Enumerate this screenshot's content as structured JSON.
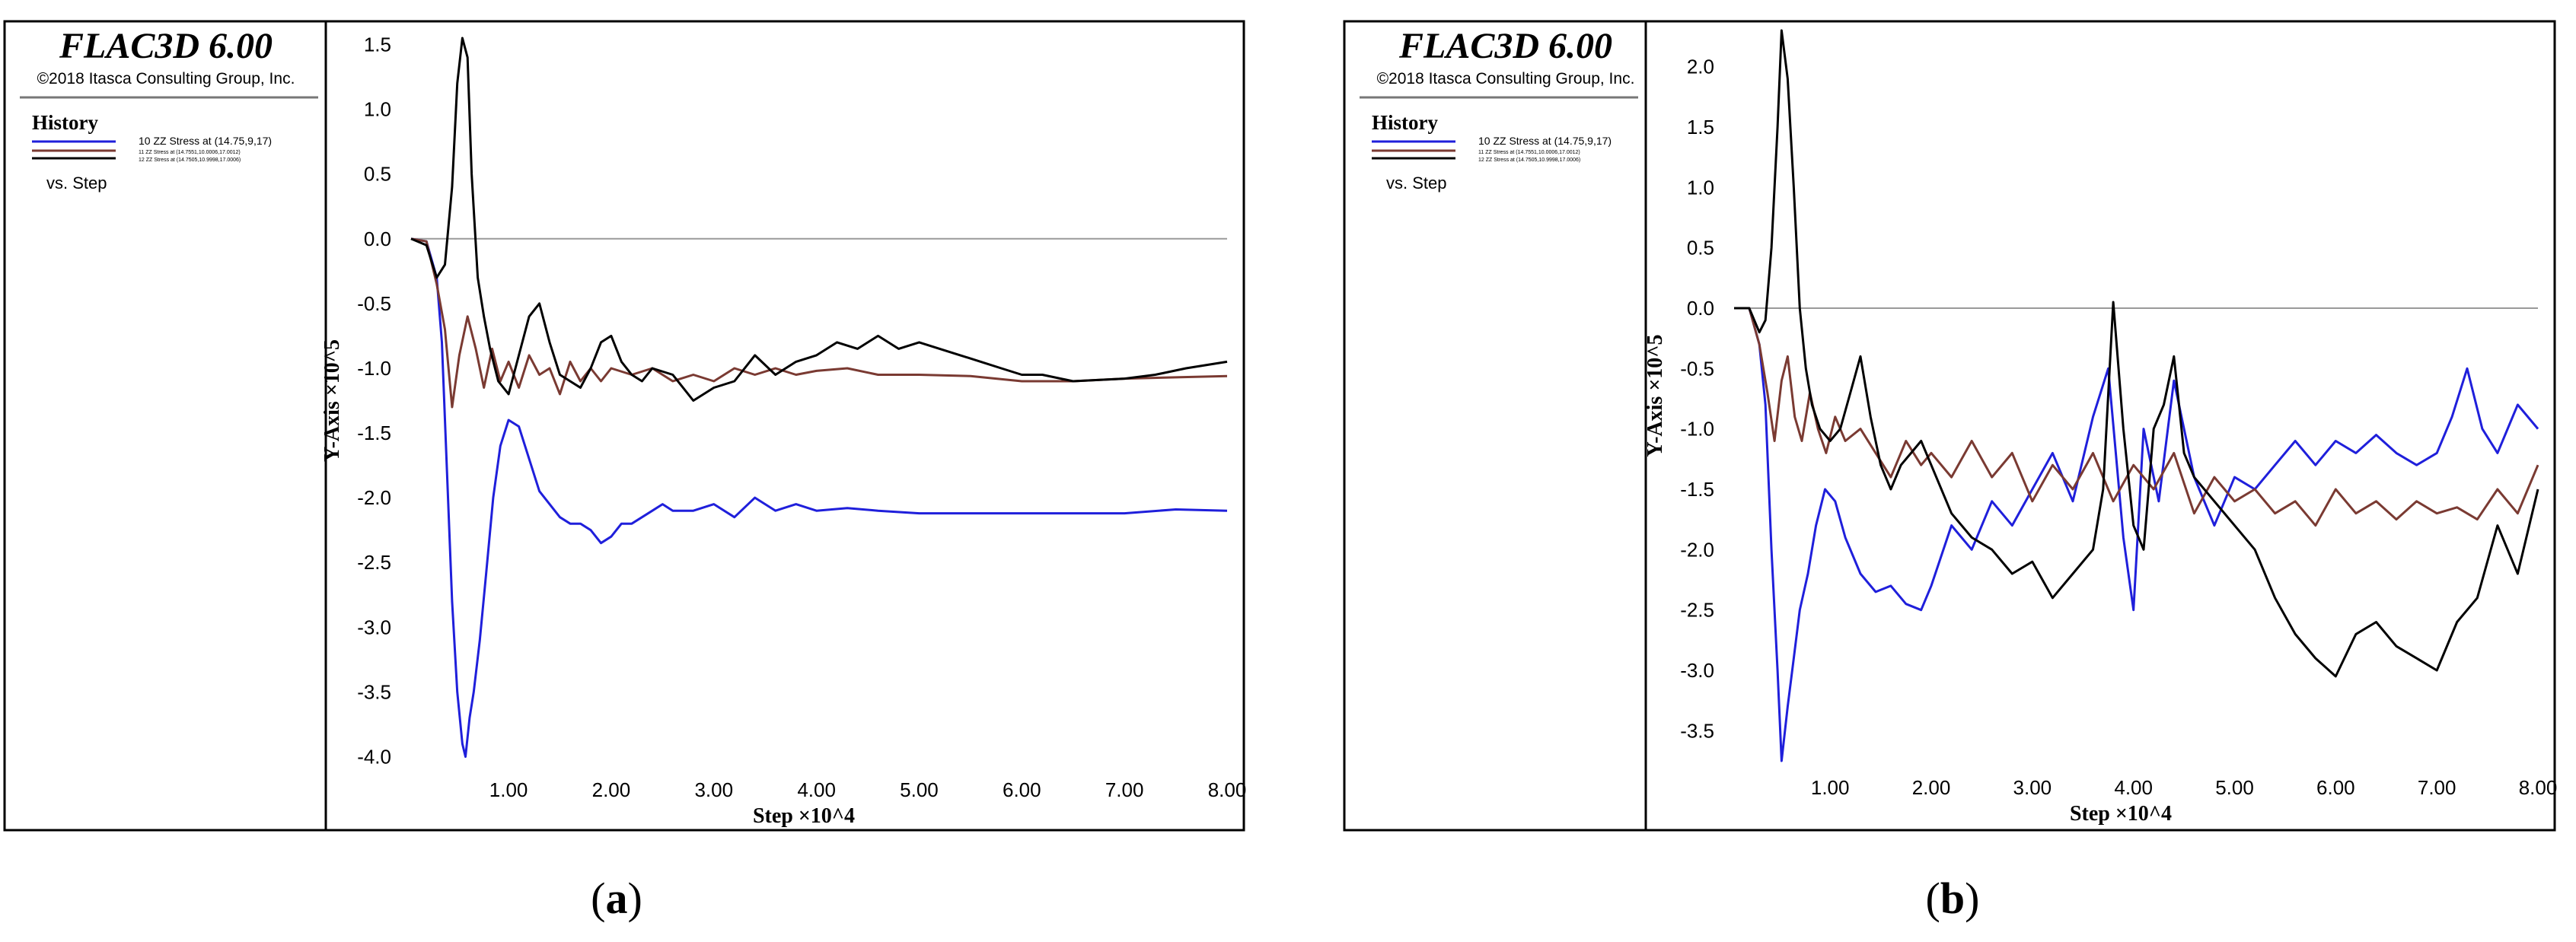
{
  "brand": {
    "title": "FLAC3D 6.00",
    "copyright": "©2018 Itasca Consulting Group, Inc."
  },
  "legend": {
    "heading": "History",
    "entry_1": "10 ZZ Stress at (14.75,9,17)",
    "entry_2": "11 ZZ Stress at (14.7551,10.0006,17.0012)",
    "entry_3": "12 ZZ Stress at (14.7505,10.9998,17.0006)",
    "vs": "vs. Step"
  },
  "colors": {
    "blue": "#1f1fdb",
    "brown": "#7a3a32",
    "black": "#000000"
  },
  "chart_data": [
    {
      "type": "line",
      "panel_label": "a",
      "xlabel": "Step ×10^4",
      "ylabel": "Y-Axis ×10^5",
      "xlim": [
        0.05,
        8.0
      ],
      "ylim": [
        -4.05,
        1.55
      ],
      "x_ticks": [
        1.0,
        2.0,
        3.0,
        4.0,
        5.0,
        6.0,
        7.0,
        8.0
      ],
      "x_tick_labels": [
        "1.00",
        "2.00",
        "3.00",
        "4.00",
        "5.00",
        "6.00",
        "7.00",
        "8.00"
      ],
      "y_ticks": [
        1.5,
        1.0,
        0.5,
        0.0,
        -0.5,
        -1.0,
        -1.5,
        -2.0,
        -2.5,
        -3.0,
        -3.5,
        -4.0
      ],
      "y_tick_labels": [
        "1.5",
        "1.0",
        "0.5",
        "0.0",
        "-0.5",
        "-1.0",
        "-1.5",
        "-2.0",
        "-2.5",
        "-3.0",
        "-3.5",
        "-4.0"
      ],
      "series": [
        {
          "color": "blue",
          "x": [
            0.05,
            0.2,
            0.3,
            0.35,
            0.4,
            0.45,
            0.5,
            0.55,
            0.58,
            0.62,
            0.66,
            0.72,
            0.78,
            0.85,
            0.92,
            1.0,
            1.1,
            1.2,
            1.3,
            1.4,
            1.5,
            1.6,
            1.7,
            1.8,
            1.9,
            2.0,
            2.1,
            2.2,
            2.3,
            2.4,
            2.5,
            2.6,
            2.8,
            3.0,
            3.2,
            3.4,
            3.6,
            3.8,
            4.0,
            4.3,
            4.6,
            5.0,
            5.5,
            6.0,
            6.5,
            7.0,
            7.5,
            8.0
          ],
          "y": [
            0.0,
            -0.02,
            -0.3,
            -0.8,
            -1.8,
            -2.8,
            -3.5,
            -3.9,
            -4.0,
            -3.7,
            -3.5,
            -3.1,
            -2.6,
            -2.0,
            -1.6,
            -1.4,
            -1.45,
            -1.7,
            -1.95,
            -2.05,
            -2.15,
            -2.2,
            -2.2,
            -2.25,
            -2.35,
            -2.3,
            -2.2,
            -2.2,
            -2.15,
            -2.1,
            -2.05,
            -2.1,
            -2.1,
            -2.05,
            -2.15,
            -2.0,
            -2.1,
            -2.05,
            -2.1,
            -2.08,
            -2.1,
            -2.12,
            -2.12,
            -2.12,
            -2.12,
            -2.12,
            -2.09,
            -2.1
          ]
        },
        {
          "color": "brown",
          "x": [
            0.05,
            0.2,
            0.3,
            0.38,
            0.45,
            0.52,
            0.6,
            0.68,
            0.76,
            0.84,
            0.92,
            1.0,
            1.1,
            1.2,
            1.3,
            1.4,
            1.5,
            1.6,
            1.7,
            1.8,
            1.9,
            2.0,
            2.2,
            2.4,
            2.6,
            2.8,
            3.0,
            3.2,
            3.4,
            3.6,
            3.8,
            4.0,
            4.3,
            4.6,
            5.0,
            5.5,
            6.0,
            6.5,
            7.0,
            7.5,
            8.0
          ],
          "y": [
            0.0,
            -0.02,
            -0.35,
            -0.7,
            -1.3,
            -0.9,
            -0.6,
            -0.85,
            -1.15,
            -0.85,
            -1.1,
            -0.95,
            -1.15,
            -0.9,
            -1.05,
            -1.0,
            -1.2,
            -0.95,
            -1.1,
            -1.0,
            -1.1,
            -1.0,
            -1.05,
            -1.0,
            -1.1,
            -1.05,
            -1.1,
            -1.0,
            -1.05,
            -1.0,
            -1.05,
            -1.02,
            -1.0,
            -1.05,
            -1.05,
            -1.06,
            -1.1,
            -1.1,
            -1.08,
            -1.07,
            -1.06
          ]
        },
        {
          "color": "black",
          "x": [
            0.05,
            0.2,
            0.3,
            0.38,
            0.45,
            0.5,
            0.55,
            0.6,
            0.64,
            0.7,
            0.76,
            0.82,
            0.9,
            1.0,
            1.1,
            1.2,
            1.3,
            1.4,
            1.5,
            1.6,
            1.7,
            1.8,
            1.9,
            2.0,
            2.1,
            2.2,
            2.3,
            2.4,
            2.6,
            2.8,
            3.0,
            3.2,
            3.4,
            3.6,
            3.8,
            4.0,
            4.2,
            4.4,
            4.6,
            4.8,
            5.0,
            5.2,
            5.4,
            5.6,
            5.8,
            6.0,
            6.2,
            6.5,
            7.0,
            7.3,
            7.6,
            8.0
          ],
          "y": [
            0.0,
            -0.05,
            -0.3,
            -0.2,
            0.4,
            1.2,
            1.55,
            1.4,
            0.5,
            -0.3,
            -0.6,
            -0.85,
            -1.1,
            -1.2,
            -0.9,
            -0.6,
            -0.5,
            -0.8,
            -1.05,
            -1.1,
            -1.15,
            -1.0,
            -0.8,
            -0.75,
            -0.95,
            -1.05,
            -1.1,
            -1.0,
            -1.05,
            -1.25,
            -1.15,
            -1.1,
            -0.9,
            -1.05,
            -0.95,
            -0.9,
            -0.8,
            -0.85,
            -0.75,
            -0.85,
            -0.8,
            -0.85,
            -0.9,
            -0.95,
            -1.0,
            -1.05,
            -1.05,
            -1.1,
            -1.08,
            -1.05,
            -1.0,
            -0.95
          ]
        }
      ]
    },
    {
      "type": "line",
      "panel_label": "b",
      "xlabel": "Step ×10^4",
      "ylabel": "Y-Axis ×10^5",
      "xlim": [
        0.05,
        8.0
      ],
      "ylim": [
        -3.75,
        2.3
      ],
      "x_ticks": [
        1.0,
        2.0,
        3.0,
        4.0,
        5.0,
        6.0,
        7.0,
        8.0
      ],
      "x_tick_labels": [
        "1.00",
        "2.00",
        "3.00",
        "4.00",
        "5.00",
        "6.00",
        "7.00",
        "8.00"
      ],
      "y_ticks": [
        2.0,
        1.5,
        1.0,
        0.5,
        0.0,
        -0.5,
        -1.0,
        -1.5,
        -2.0,
        -2.5,
        -3.0,
        -3.5
      ],
      "y_tick_labels": [
        "2.0",
        "1.5",
        "1.0",
        "0.5",
        "0.0",
        "-0.5",
        "-1.0",
        "-1.5",
        "-2.0",
        "-2.5",
        "-3.0",
        "-3.5"
      ],
      "series": [
        {
          "color": "blue",
          "x": [
            0.05,
            0.2,
            0.3,
            0.36,
            0.42,
            0.48,
            0.52,
            0.58,
            0.64,
            0.7,
            0.78,
            0.86,
            0.95,
            1.05,
            1.15,
            1.3,
            1.45,
            1.6,
            1.75,
            1.9,
            2.0,
            2.2,
            2.4,
            2.6,
            2.8,
            3.0,
            3.2,
            3.4,
            3.6,
            3.75,
            3.9,
            4.0,
            4.1,
            4.25,
            4.4,
            4.6,
            4.8,
            5.0,
            5.2,
            5.4,
            5.6,
            5.8,
            6.0,
            6.2,
            6.4,
            6.6,
            6.8,
            7.0,
            7.15,
            7.3,
            7.45,
            7.6,
            7.8,
            8.0
          ],
          "y": [
            0.0,
            0.0,
            -0.3,
            -0.8,
            -2.0,
            -3.0,
            -3.75,
            -3.3,
            -2.9,
            -2.5,
            -2.2,
            -1.8,
            -1.5,
            -1.6,
            -1.9,
            -2.2,
            -2.35,
            -2.3,
            -2.45,
            -2.5,
            -2.3,
            -1.8,
            -2.0,
            -1.6,
            -1.8,
            -1.5,
            -1.2,
            -1.6,
            -0.9,
            -0.5,
            -1.9,
            -2.5,
            -1.0,
            -1.6,
            -0.6,
            -1.4,
            -1.8,
            -1.4,
            -1.5,
            -1.3,
            -1.1,
            -1.3,
            -1.1,
            -1.2,
            -1.05,
            -1.2,
            -1.3,
            -1.2,
            -0.9,
            -0.5,
            -1.0,
            -1.2,
            -0.8,
            -1.0
          ]
        },
        {
          "color": "brown",
          "x": [
            0.05,
            0.2,
            0.3,
            0.38,
            0.45,
            0.52,
            0.58,
            0.65,
            0.72,
            0.8,
            0.88,
            0.96,
            1.05,
            1.15,
            1.3,
            1.45,
            1.6,
            1.75,
            1.9,
            2.0,
            2.2,
            2.4,
            2.6,
            2.8,
            3.0,
            3.2,
            3.4,
            3.6,
            3.8,
            4.0,
            4.2,
            4.4,
            4.6,
            4.8,
            5.0,
            5.2,
            5.4,
            5.6,
            5.8,
            6.0,
            6.2,
            6.4,
            6.6,
            6.8,
            7.0,
            7.2,
            7.4,
            7.6,
            7.8,
            8.0
          ],
          "y": [
            0.0,
            0.0,
            -0.3,
            -0.7,
            -1.1,
            -0.6,
            -0.4,
            -0.9,
            -1.1,
            -0.7,
            -1.0,
            -1.2,
            -0.9,
            -1.1,
            -1.0,
            -1.2,
            -1.4,
            -1.1,
            -1.3,
            -1.2,
            -1.4,
            -1.1,
            -1.4,
            -1.2,
            -1.6,
            -1.3,
            -1.5,
            -1.2,
            -1.6,
            -1.3,
            -1.5,
            -1.2,
            -1.7,
            -1.4,
            -1.6,
            -1.5,
            -1.7,
            -1.6,
            -1.8,
            -1.5,
            -1.7,
            -1.6,
            -1.75,
            -1.6,
            -1.7,
            -1.65,
            -1.75,
            -1.5,
            -1.7,
            -1.3
          ]
        },
        {
          "color": "black",
          "x": [
            0.05,
            0.2,
            0.3,
            0.36,
            0.42,
            0.48,
            0.52,
            0.58,
            0.64,
            0.7,
            0.76,
            0.82,
            0.9,
            1.0,
            1.1,
            1.2,
            1.3,
            1.4,
            1.5,
            1.6,
            1.7,
            1.8,
            1.9,
            2.0,
            2.2,
            2.4,
            2.6,
            2.8,
            3.0,
            3.2,
            3.4,
            3.6,
            3.7,
            3.8,
            3.9,
            4.0,
            4.1,
            4.2,
            4.3,
            4.4,
            4.5,
            4.6,
            4.8,
            5.0,
            5.2,
            5.4,
            5.6,
            5.8,
            6.0,
            6.2,
            6.4,
            6.6,
            6.8,
            7.0,
            7.2,
            7.4,
            7.6,
            7.8,
            8.0
          ],
          "y": [
            0.0,
            0.0,
            -0.2,
            -0.1,
            0.5,
            1.5,
            2.3,
            1.9,
            1.0,
            0.0,
            -0.5,
            -0.8,
            -1.0,
            -1.1,
            -1.0,
            -0.7,
            -0.4,
            -0.9,
            -1.3,
            -1.5,
            -1.3,
            -1.2,
            -1.1,
            -1.3,
            -1.7,
            -1.9,
            -2.0,
            -2.2,
            -2.1,
            -2.4,
            -2.2,
            -2.0,
            -1.5,
            0.05,
            -1.0,
            -1.8,
            -2.0,
            -1.0,
            -0.8,
            -0.4,
            -1.2,
            -1.4,
            -1.6,
            -1.8,
            -2.0,
            -2.4,
            -2.7,
            -2.9,
            -3.05,
            -2.7,
            -2.6,
            -2.8,
            -2.9,
            -3.0,
            -2.6,
            -2.4,
            -1.8,
            -2.2,
            -1.5
          ]
        }
      ]
    }
  ]
}
